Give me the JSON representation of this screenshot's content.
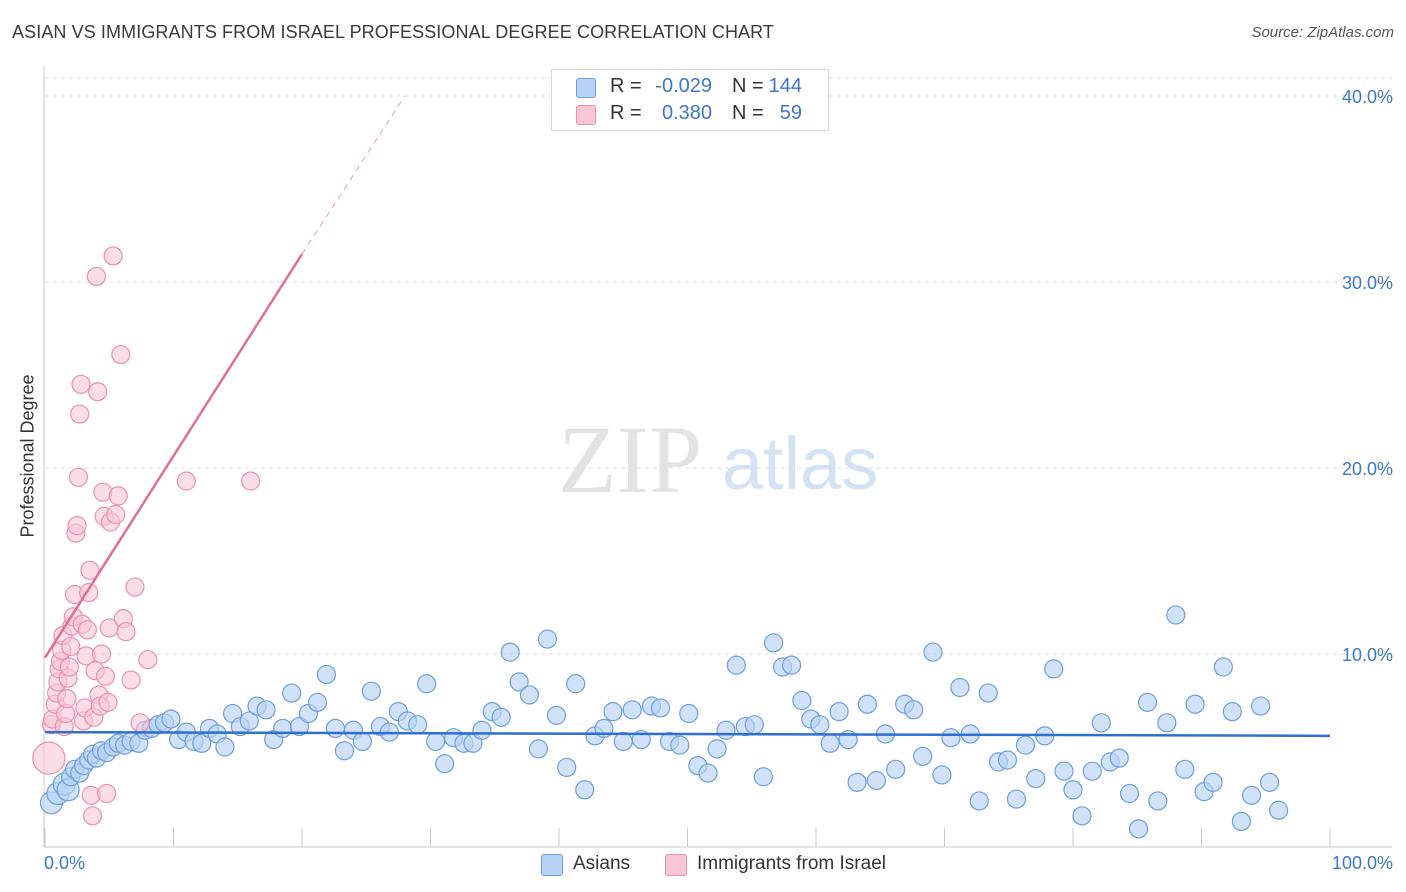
{
  "title": "ASIAN VS IMMIGRANTS FROM ISRAEL PROFESSIONAL DEGREE CORRELATION CHART",
  "source": "Source: ZipAtlas.com",
  "watermark": {
    "zip": "ZIP",
    "atlas": "atlas"
  },
  "legend": {
    "rows": [
      {
        "r_label": "R =",
        "r_value": "-0.029",
        "n_label": "N =",
        "n_value": "144",
        "color": "#aac8f0",
        "border": "#6a9ad8"
      },
      {
        "r_label": "R =",
        "r_value": "0.380",
        "n_label": "N =",
        "n_value": "59",
        "color": "#f8c0d2",
        "border": "#e890b0"
      }
    ]
  },
  "colors": {
    "asian_fill": "#b8d2f4",
    "asian_stroke": "#6d9fdc",
    "asian_line": "#2f6fcf",
    "israel_fill": "#f9c6d6",
    "israel_stroke": "#ec8fb0",
    "israel_line": "#e06e97",
    "tick_label": "#3b78c8"
  },
  "chart_data": {
    "type": "scatter",
    "title": "ASIAN VS IMMIGRANTS FROM ISRAEL PROFESSIONAL DEGREE CORRELATION CHART",
    "xlabel": "",
    "ylabel": "Professional Degree",
    "xlim": [
      0,
      100
    ],
    "ylim": [
      0,
      42
    ],
    "x_ticks": [
      {
        "value": 0,
        "label": "0.0%"
      },
      {
        "value": 100,
        "label": "100.0%"
      }
    ],
    "y_ticks": [
      {
        "value": 10,
        "label": "10.0%"
      },
      {
        "value": 20,
        "label": "20.0%"
      },
      {
        "value": 30,
        "label": "30.0%"
      },
      {
        "value": 40,
        "label": "40.0%"
      }
    ],
    "grid": "horizontal dashed",
    "legend_position": "top-center",
    "series": [
      {
        "name": "Asians",
        "r": -0.029,
        "n": 144,
        "trend": {
          "x": [
            0,
            100
          ],
          "y": [
            5.8,
            5.6
          ],
          "style": "solid"
        },
        "points": [
          [
            0.5,
            2.0
          ],
          [
            1.0,
            2.5
          ],
          [
            1.5,
            3.0
          ],
          [
            1.8,
            2.7
          ],
          [
            2.0,
            3.4
          ],
          [
            2.3,
            3.8
          ],
          [
            2.7,
            3.6
          ],
          [
            3.0,
            4.0
          ],
          [
            3.4,
            4.3
          ],
          [
            3.7,
            4.6
          ],
          [
            4.0,
            4.4
          ],
          [
            4.4,
            4.8
          ],
          [
            4.8,
            4.7
          ],
          [
            5.3,
            5.0
          ],
          [
            5.7,
            5.2
          ],
          [
            6.2,
            5.1
          ],
          [
            6.7,
            5.3
          ],
          [
            7.3,
            5.2
          ],
          [
            7.8,
            5.9
          ],
          [
            8.3,
            6.0
          ],
          [
            8.8,
            6.2
          ],
          [
            9.3,
            6.3
          ],
          [
            9.8,
            6.5
          ],
          [
            10.4,
            5.4
          ],
          [
            11.0,
            5.8
          ],
          [
            11.6,
            5.3
          ],
          [
            12.2,
            5.2
          ],
          [
            12.8,
            6.0
          ],
          [
            13.4,
            5.7
          ],
          [
            14.0,
            5.0
          ],
          [
            14.6,
            6.8
          ],
          [
            15.2,
            6.1
          ],
          [
            15.9,
            6.4
          ],
          [
            16.5,
            7.2
          ],
          [
            17.2,
            7.0
          ],
          [
            17.8,
            5.4
          ],
          [
            18.5,
            6.0
          ],
          [
            19.2,
            7.9
          ],
          [
            19.8,
            6.1
          ],
          [
            20.5,
            6.8
          ],
          [
            21.2,
            7.4
          ],
          [
            21.9,
            8.9
          ],
          [
            22.6,
            6.0
          ],
          [
            23.3,
            4.8
          ],
          [
            24.0,
            5.9
          ],
          [
            24.7,
            5.3
          ],
          [
            25.4,
            8.0
          ],
          [
            26.1,
            6.1
          ],
          [
            26.8,
            5.8
          ],
          [
            27.5,
            6.9
          ],
          [
            28.2,
            6.4
          ],
          [
            29.0,
            6.2
          ],
          [
            29.7,
            8.4
          ],
          [
            30.4,
            5.3
          ],
          [
            31.1,
            4.1
          ],
          [
            31.8,
            5.5
          ],
          [
            32.6,
            5.2
          ],
          [
            33.3,
            5.2
          ],
          [
            34.0,
            5.9
          ],
          [
            34.8,
            6.9
          ],
          [
            35.5,
            6.6
          ],
          [
            36.2,
            10.1
          ],
          [
            36.9,
            8.5
          ],
          [
            37.7,
            7.8
          ],
          [
            38.4,
            4.9
          ],
          [
            39.1,
            10.8
          ],
          [
            39.8,
            6.7
          ],
          [
            40.6,
            3.9
          ],
          [
            41.3,
            8.4
          ],
          [
            42.0,
            2.7
          ],
          [
            42.8,
            5.6
          ],
          [
            43.5,
            6.0
          ],
          [
            44.2,
            6.9
          ],
          [
            45.0,
            5.3
          ],
          [
            45.7,
            7.0
          ],
          [
            46.4,
            5.4
          ],
          [
            47.2,
            7.2
          ],
          [
            47.9,
            7.1
          ],
          [
            48.6,
            5.3
          ],
          [
            49.4,
            5.1
          ],
          [
            50.1,
            6.8
          ],
          [
            50.8,
            4.0
          ],
          [
            51.6,
            3.6
          ],
          [
            52.3,
            4.9
          ],
          [
            53.0,
            5.9
          ],
          [
            53.8,
            9.4
          ],
          [
            54.5,
            6.1
          ],
          [
            55.2,
            6.2
          ],
          [
            55.9,
            3.4
          ],
          [
            56.7,
            10.6
          ],
          [
            57.4,
            9.3
          ],
          [
            58.1,
            9.4
          ],
          [
            58.9,
            7.5
          ],
          [
            59.6,
            6.5
          ],
          [
            60.3,
            6.2
          ],
          [
            61.1,
            5.2
          ],
          [
            61.8,
            6.9
          ],
          [
            62.5,
            5.4
          ],
          [
            63.2,
            3.1
          ],
          [
            64.0,
            7.3
          ],
          [
            64.7,
            3.2
          ],
          [
            65.4,
            5.7
          ],
          [
            66.2,
            3.8
          ],
          [
            66.9,
            7.3
          ],
          [
            67.6,
            7.0
          ],
          [
            68.3,
            4.5
          ],
          [
            69.1,
            10.1
          ],
          [
            69.8,
            3.5
          ],
          [
            70.5,
            5.5
          ],
          [
            71.2,
            8.2
          ],
          [
            72.0,
            5.7
          ],
          [
            72.7,
            2.1
          ],
          [
            73.4,
            7.9
          ],
          [
            74.2,
            4.2
          ],
          [
            74.9,
            4.3
          ],
          [
            75.6,
            2.2
          ],
          [
            76.3,
            5.1
          ],
          [
            77.1,
            3.3
          ],
          [
            77.8,
            5.6
          ],
          [
            78.5,
            9.2
          ],
          [
            79.3,
            3.7
          ],
          [
            80.0,
            2.7
          ],
          [
            80.7,
            1.3
          ],
          [
            81.5,
            3.7
          ],
          [
            82.2,
            6.3
          ],
          [
            82.9,
            4.2
          ],
          [
            83.6,
            4.4
          ],
          [
            84.4,
            2.5
          ],
          [
            85.1,
            0.6
          ],
          [
            85.8,
            7.4
          ],
          [
            86.6,
            2.1
          ],
          [
            87.3,
            6.3
          ],
          [
            88.0,
            12.1
          ],
          [
            88.7,
            3.8
          ],
          [
            89.5,
            7.3
          ],
          [
            90.2,
            2.6
          ],
          [
            90.9,
            3.1
          ],
          [
            91.7,
            9.3
          ],
          [
            92.4,
            6.9
          ],
          [
            93.1,
            1.0
          ],
          [
            93.9,
            2.4
          ],
          [
            94.6,
            7.2
          ],
          [
            95.3,
            3.1
          ],
          [
            96.0,
            1.6
          ]
        ]
      },
      {
        "name": "Immigrants from Israel",
        "r": 0.38,
        "n": 59,
        "trend": {
          "x": [
            0,
            20
          ],
          "y": [
            9.8,
            31.5
          ],
          "style": "solid",
          "extended_to": {
            "x": 28,
            "y": 40
          },
          "extended_style": "dashed"
        },
        "points": [
          [
            0.3,
            4.4
          ],
          [
            0.5,
            6.2
          ],
          [
            0.6,
            6.5
          ],
          [
            0.8,
            7.3
          ],
          [
            0.9,
            7.9
          ],
          [
            1.0,
            8.5
          ],
          [
            1.1,
            9.2
          ],
          [
            1.2,
            9.6
          ],
          [
            1.3,
            10.2
          ],
          [
            1.4,
            11.0
          ],
          [
            1.5,
            6.1
          ],
          [
            1.6,
            6.8
          ],
          [
            1.7,
            7.6
          ],
          [
            1.8,
            8.7
          ],
          [
            1.9,
            9.3
          ],
          [
            2.0,
            10.4
          ],
          [
            2.1,
            11.5
          ],
          [
            2.2,
            12.0
          ],
          [
            2.3,
            13.2
          ],
          [
            2.4,
            16.5
          ],
          [
            2.5,
            16.9
          ],
          [
            2.6,
            19.5
          ],
          [
            2.7,
            22.9
          ],
          [
            2.8,
            24.5
          ],
          [
            2.9,
            11.6
          ],
          [
            3.0,
            6.4
          ],
          [
            3.1,
            7.1
          ],
          [
            3.2,
            9.9
          ],
          [
            3.3,
            11.3
          ],
          [
            3.4,
            13.3
          ],
          [
            3.5,
            14.5
          ],
          [
            3.6,
            2.4
          ],
          [
            3.7,
            1.3
          ],
          [
            3.8,
            6.6
          ],
          [
            3.9,
            9.1
          ],
          [
            4.0,
            30.3
          ],
          [
            4.1,
            24.1
          ],
          [
            4.2,
            7.8
          ],
          [
            4.3,
            7.2
          ],
          [
            4.4,
            10.0
          ],
          [
            4.5,
            18.7
          ],
          [
            4.6,
            17.4
          ],
          [
            4.7,
            8.8
          ],
          [
            4.8,
            2.5
          ],
          [
            4.9,
            7.4
          ],
          [
            5.0,
            11.4
          ],
          [
            5.1,
            17.1
          ],
          [
            5.3,
            31.4
          ],
          [
            5.5,
            17.5
          ],
          [
            5.7,
            18.5
          ],
          [
            5.9,
            26.1
          ],
          [
            6.1,
            11.9
          ],
          [
            6.3,
            11.2
          ],
          [
            6.7,
            8.6
          ],
          [
            7.0,
            13.6
          ],
          [
            7.4,
            6.3
          ],
          [
            8.0,
            9.7
          ],
          [
            11.0,
            19.3
          ],
          [
            16.0,
            19.3
          ]
        ]
      }
    ]
  }
}
